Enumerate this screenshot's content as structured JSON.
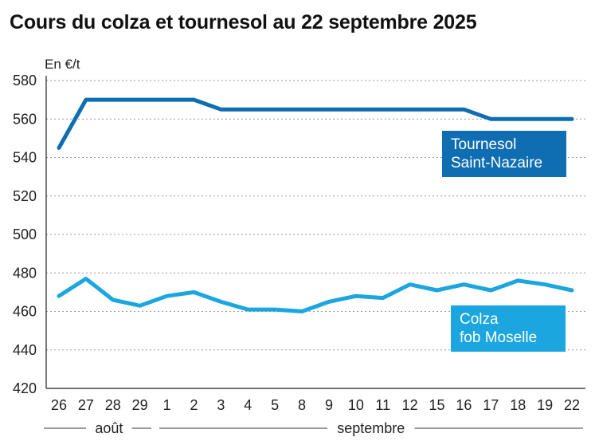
{
  "title": "Cours du colza et tournesol au 22 septembre 2025",
  "chart_data": {
    "type": "line",
    "title": "Cours du colza et tournesol au 22 septembre 2025",
    "ylabel": "En €/t",
    "ylim": [
      420,
      580
    ],
    "yticks": [
      420,
      440,
      460,
      480,
      500,
      520,
      540,
      560,
      580
    ],
    "grid": true,
    "categories": [
      "26",
      "27",
      "28",
      "29",
      "1",
      "2",
      "3",
      "4",
      "5",
      "8",
      "9",
      "10",
      "11",
      "12",
      "15",
      "16",
      "17",
      "18",
      "19",
      "22"
    ],
    "month_groups": [
      {
        "label": "août",
        "start": 0,
        "end": 3
      },
      {
        "label": "septembre",
        "start": 4,
        "end": 19
      }
    ],
    "series": [
      {
        "name": "Tournesol Saint-Nazaire",
        "label_lines": [
          "Tournesol",
          "Saint-Nazaire"
        ],
        "color": "#0f6db2",
        "values": [
          545,
          570,
          570,
          570,
          570,
          570,
          565,
          565,
          565,
          565,
          565,
          565,
          565,
          565,
          565,
          565,
          560,
          560,
          560,
          560
        ]
      },
      {
        "name": "Colza fob Moselle",
        "label_lines": [
          "Colza",
          "fob Moselle"
        ],
        "color": "#1ba6e0",
        "values": [
          468,
          477,
          466,
          463,
          468,
          470,
          465,
          461,
          461,
          460,
          465,
          468,
          467,
          474,
          471,
          474,
          471,
          476,
          474,
          471
        ]
      }
    ]
  }
}
